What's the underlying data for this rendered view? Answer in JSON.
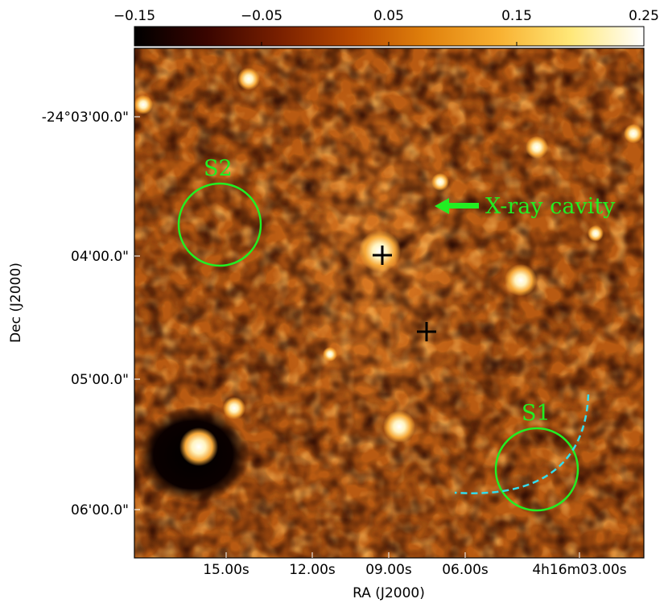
{
  "colorbar": {
    "ticks": [
      "−0.15",
      "−0.05",
      "0.05",
      "0.15",
      "0.25"
    ],
    "stops": [
      "#000000",
      "#3a0500",
      "#7a2000",
      "#b84a00",
      "#e0800c",
      "#f8b030",
      "#ffe878",
      "#ffffff"
    ]
  },
  "axes": {
    "xlabel": "RA (J2000)",
    "ylabel": "Dec (J2000)",
    "xticks": [
      "15.00s",
      "12.00s",
      "09.00s",
      "06.00s",
      "4h16m03.00s"
    ],
    "yticks": [
      "-24°03'00.0\"",
      "04'00.0\"",
      "05'00.0\"",
      "06'00.0\""
    ]
  },
  "annotations": {
    "cavity_label": "X-ray cavity",
    "region_s1": "S1",
    "region_s2": "S2",
    "annotation_color": "#22ee22",
    "arc_color": "#33ddee",
    "marker_color": "#000000"
  }
}
